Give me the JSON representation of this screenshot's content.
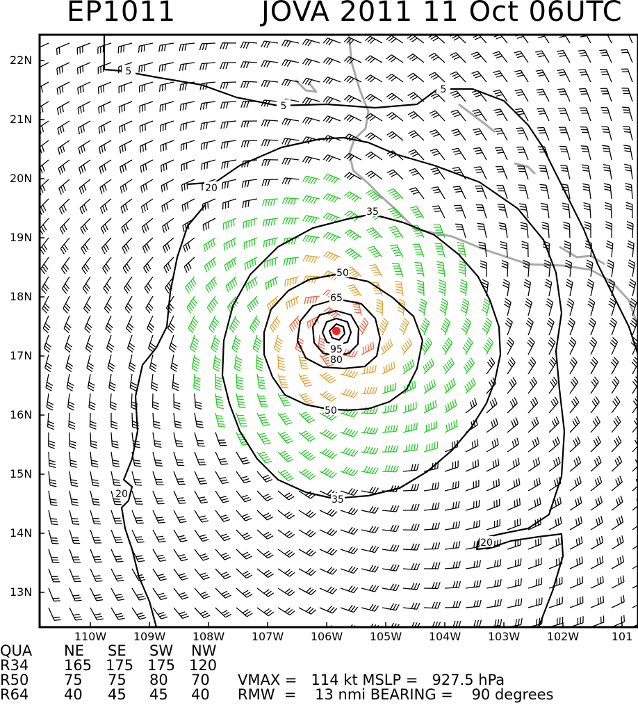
{
  "header": {
    "storm_id": "EP1011",
    "storm_title": "JOVA 2011 11 Oct 06UTC"
  },
  "map": {
    "lat_labels": [
      "22N",
      "21N",
      "20N",
      "19N",
      "18N",
      "17N",
      "16N",
      "15N",
      "14N",
      "13N"
    ],
    "lon_labels": [
      "110W",
      "109W",
      "108W",
      "107W",
      "106W",
      "105W",
      "104W",
      "103W",
      "102W",
      "101"
    ],
    "contour_labels": [
      "5",
      "5",
      "5",
      "20",
      "20",
      "20",
      "35",
      "35",
      "50",
      "50",
      "65",
      "80",
      "95"
    ],
    "colors": {
      "barb_below_34kt": "#000000",
      "barb_34_50kt": "#22cc22",
      "barb_50_64kt": "#e0a030",
      "barb_64kt_plus": "#f06040",
      "center_marker": "#ff2222",
      "coastline": "#a8a8a8",
      "contour": "#000000"
    }
  },
  "wind_radii_table": {
    "header": [
      "QUA",
      "NE",
      "SE",
      "SW",
      "NW"
    ],
    "rows": [
      [
        "R34",
        "165",
        "175",
        "175",
        "120"
      ],
      [
        "R50",
        "75",
        "75",
        "80",
        "70"
      ],
      [
        "R64",
        "40",
        "45",
        "45",
        "40"
      ]
    ]
  },
  "stats": {
    "line1": "VMAX =   114 kt MSLP =   927.5 hPa",
    "line2": "RMW  =    13 nmi BEARING =    90 degrees"
  }
}
